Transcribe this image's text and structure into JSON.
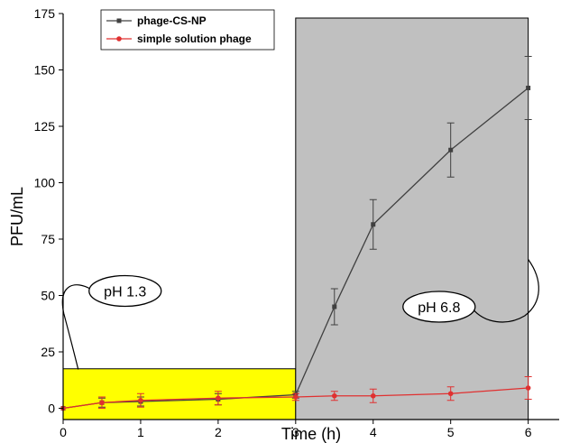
{
  "chart_data": {
    "type": "line",
    "xlabel": "Time (h)",
    "ylabel": "PFU/mL",
    "xlim": [
      0,
      6.4
    ],
    "ylim": [
      -5,
      175
    ],
    "xticks": [
      0,
      1,
      2,
      3,
      4,
      5,
      6
    ],
    "yticks": [
      0,
      25,
      50,
      75,
      100,
      125,
      150,
      175
    ],
    "legend_position": "top-left",
    "regions": [
      {
        "x": [
          0,
          3
        ],
        "y": [
          -5,
          17.5
        ],
        "color": "#ffff00"
      },
      {
        "x": [
          3,
          6
        ],
        "y": [
          -5,
          173
        ],
        "color": "#c0c0c0"
      }
    ],
    "annotations": [
      {
        "text": "pH 1.3",
        "x": 0.8,
        "y": 52
      },
      {
        "text": "pH 6.8",
        "x": 4.85,
        "y": 45
      }
    ],
    "series": [
      {
        "name": "phage-CS-NP",
        "color": "#404040",
        "marker": "square",
        "x": [
          0,
          0.5,
          1,
          2,
          3,
          3.5,
          4,
          5,
          6
        ],
        "y": [
          0,
          2.5,
          3,
          4,
          6,
          45,
          81.5,
          114.5,
          142
        ],
        "err": [
          0,
          2,
          2,
          2.5,
          1.5,
          8,
          11,
          12,
          14
        ]
      },
      {
        "name": "simple solution phage",
        "color": "#e03030",
        "marker": "circle",
        "x": [
          0,
          0.5,
          1,
          2,
          3,
          3.5,
          4,
          5,
          6
        ],
        "y": [
          0,
          2.5,
          3.5,
          4.5,
          5,
          5.5,
          5.5,
          6.5,
          9
        ],
        "err": [
          0,
          2.5,
          3,
          3,
          1.5,
          2,
          3,
          3,
          5
        ]
      }
    ]
  }
}
